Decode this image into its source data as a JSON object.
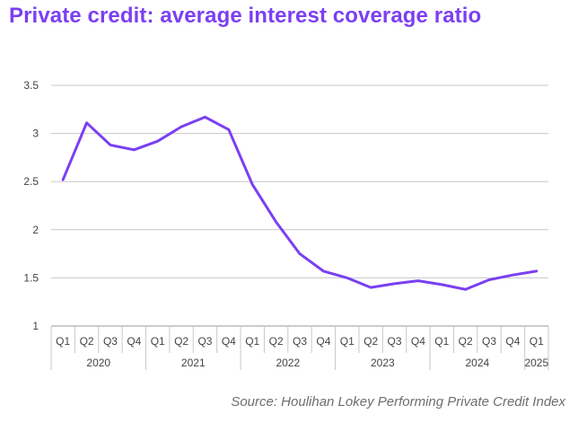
{
  "title": "Private credit: average interest coverage ratio",
  "source": "Source: Houlihan Lokey Performing Private Credit Index",
  "colors": {
    "title": "#7b3ff2",
    "line": "#7b3ff2",
    "grid": "#c8c8c8",
    "text": "#444444"
  },
  "chart_data": {
    "type": "line",
    "title": "Private credit: average interest coverage ratio",
    "xlabel": "",
    "ylabel": "",
    "ylim": [
      1,
      3.5
    ],
    "yticks": [
      "1",
      "1.5",
      "2",
      "2.5",
      "3",
      "3.5"
    ],
    "grid": true,
    "legend": "none",
    "categories": [
      "Q1",
      "Q2",
      "Q3",
      "Q4",
      "Q1",
      "Q2",
      "Q3",
      "Q4",
      "Q1",
      "Q2",
      "Q3",
      "Q4",
      "Q1",
      "Q2",
      "Q3",
      "Q4",
      "Q1",
      "Q2",
      "Q3",
      "Q4",
      "Q1"
    ],
    "groups": [
      {
        "label": "2020",
        "count": 4
      },
      {
        "label": "2021",
        "count": 4
      },
      {
        "label": "2022",
        "count": 4
      },
      {
        "label": "2023",
        "count": 4
      },
      {
        "label": "2024",
        "count": 4
      },
      {
        "label": "2025",
        "count": 1
      }
    ],
    "series": [
      {
        "values": [
          2.52,
          3.11,
          2.88,
          2.83,
          2.92,
          3.07,
          3.17,
          3.04,
          2.47,
          2.08,
          1.75,
          1.57,
          1.5,
          1.4,
          1.44,
          1.47,
          1.43,
          1.38,
          1.48,
          1.53,
          1.57
        ]
      }
    ]
  }
}
